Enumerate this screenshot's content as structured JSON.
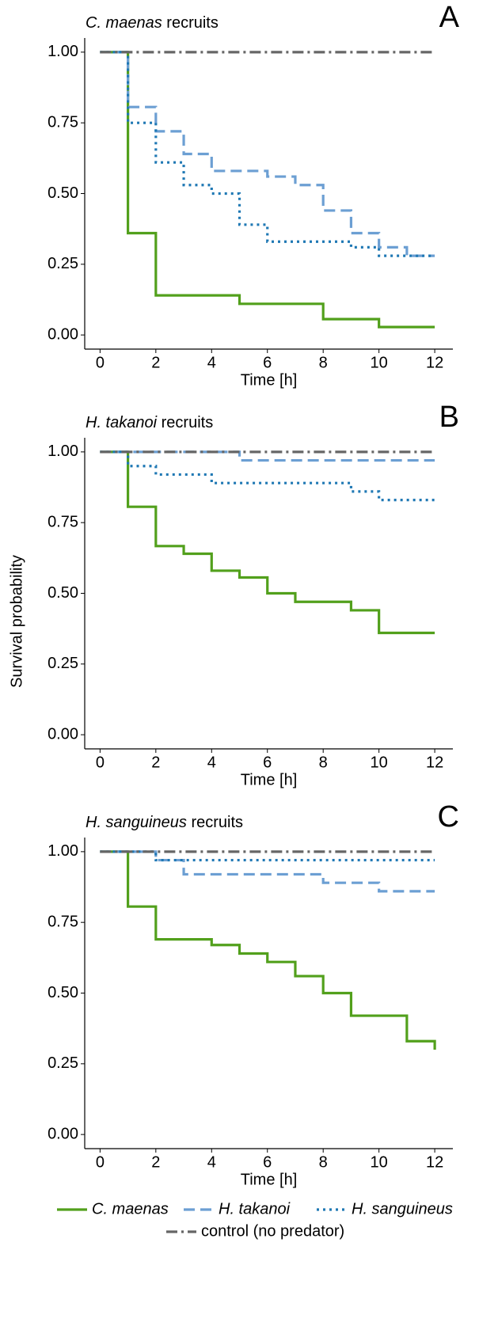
{
  "chart_data": [
    {
      "type": "step",
      "panel": "A",
      "title_species": "C. maenas",
      "title_rest": "recruits",
      "xlabel": "Time [h]",
      "xlim": [
        -0.55,
        12.65
      ],
      "xticks": [
        0,
        2,
        4,
        6,
        8,
        10,
        12
      ],
      "ylim": [
        -0.05,
        1.05
      ],
      "yticks": [
        {
          "value": 0,
          "label": "0.00"
        },
        {
          "value": 0.25,
          "label": "0.25"
        },
        {
          "value": 0.5,
          "label": "0.50"
        },
        {
          "value": 0.75,
          "label": "0.75"
        },
        {
          "value": 1,
          "label": "1.00"
        }
      ],
      "series": [
        {
          "x": [
            0,
            1,
            2,
            5,
            8,
            10,
            12
          ],
          "values": [
            1,
            0.36,
            0.14,
            0.11,
            0.056,
            0.028,
            0.028
          ]
        },
        {
          "x": [
            0,
            1,
            2,
            3,
            4,
            6,
            7,
            8,
            9,
            10,
            11,
            12
          ],
          "values": [
            1,
            0.806,
            0.72,
            0.64,
            0.58,
            0.56,
            0.53,
            0.44,
            0.36,
            0.31,
            0.28,
            0.28
          ]
        },
        {
          "x": [
            0,
            1,
            2,
            3,
            4,
            5,
            6,
            9,
            10,
            12
          ],
          "values": [
            1,
            0.75,
            0.61,
            0.53,
            0.5,
            0.39,
            0.33,
            0.31,
            0.28,
            0.28
          ]
        },
        {
          "x": [
            0,
            12
          ],
          "values": [
            1,
            1
          ]
        }
      ]
    },
    {
      "type": "step",
      "panel": "B",
      "title_species": "H. takanoi",
      "title_rest": "recruits",
      "xlabel": "Time [h]",
      "xlim": [
        -0.55,
        12.65
      ],
      "xticks": [
        0,
        2,
        4,
        6,
        8,
        10,
        12
      ],
      "ylim": [
        -0.05,
        1.05
      ],
      "yticks": [
        {
          "value": 0,
          "label": "0.00"
        },
        {
          "value": 0.25,
          "label": "0.25"
        },
        {
          "value": 0.5,
          "label": "0.50"
        },
        {
          "value": 0.75,
          "label": "0.75"
        },
        {
          "value": 1,
          "label": "1.00"
        }
      ],
      "series": [
        {
          "x": [
            0,
            1,
            2,
            3,
            4,
            5,
            6,
            7,
            9,
            10,
            12
          ],
          "values": [
            1,
            0.806,
            0.667,
            0.64,
            0.58,
            0.556,
            0.5,
            0.47,
            0.44,
            0.36,
            0.36
          ]
        },
        {
          "x": [
            0,
            5,
            12
          ],
          "values": [
            1,
            0.97,
            0.97
          ]
        },
        {
          "x": [
            0,
            1,
            2,
            4,
            9,
            10,
            12
          ],
          "values": [
            1,
            0.95,
            0.92,
            0.89,
            0.86,
            0.83,
            0.83
          ]
        },
        {
          "x": [
            0,
            12
          ],
          "values": [
            1,
            1
          ]
        }
      ]
    },
    {
      "type": "step",
      "panel": "C",
      "title_species": "H. sanguineus",
      "title_rest": "recruits",
      "xlabel": "Time [h]",
      "xlim": [
        -0.55,
        12.65
      ],
      "xticks": [
        0,
        2,
        4,
        6,
        8,
        10,
        12
      ],
      "ylim": [
        -0.05,
        1.05
      ],
      "yticks": [
        {
          "value": 0,
          "label": "0.00"
        },
        {
          "value": 0.25,
          "label": "0.25"
        },
        {
          "value": 0.5,
          "label": "0.50"
        },
        {
          "value": 0.75,
          "label": "0.75"
        },
        {
          "value": 1,
          "label": "1.00"
        }
      ],
      "series": [
        {
          "x": [
            0,
            1,
            2,
            4,
            5,
            6,
            7,
            8,
            9,
            11,
            12
          ],
          "values": [
            1,
            0.806,
            0.69,
            0.67,
            0.64,
            0.61,
            0.56,
            0.5,
            0.42,
            0.33,
            0.3
          ]
        },
        {
          "x": [
            0,
            2,
            3,
            8,
            10,
            12
          ],
          "values": [
            1,
            0.97,
            0.92,
            0.89,
            0.86,
            0.86
          ]
        },
        {
          "x": [
            0,
            2,
            12
          ],
          "values": [
            1,
            0.97,
            0.97
          ]
        },
        {
          "x": [
            0,
            12
          ],
          "values": [
            1,
            1
          ]
        }
      ]
    }
  ],
  "ylabel": "Survival probability",
  "legend": [
    {
      "name": "C. maenas",
      "color": "#52a01c",
      "style": "solid"
    },
    {
      "name": "H. takanoi",
      "color": "#6c9fd3",
      "style": "dashed"
    },
    {
      "name": "H. sanguineus",
      "color": "#1f78b4",
      "style": "dotted"
    },
    {
      "name": "control (no predator)",
      "color": "#666666",
      "style": "dashdot"
    }
  ]
}
